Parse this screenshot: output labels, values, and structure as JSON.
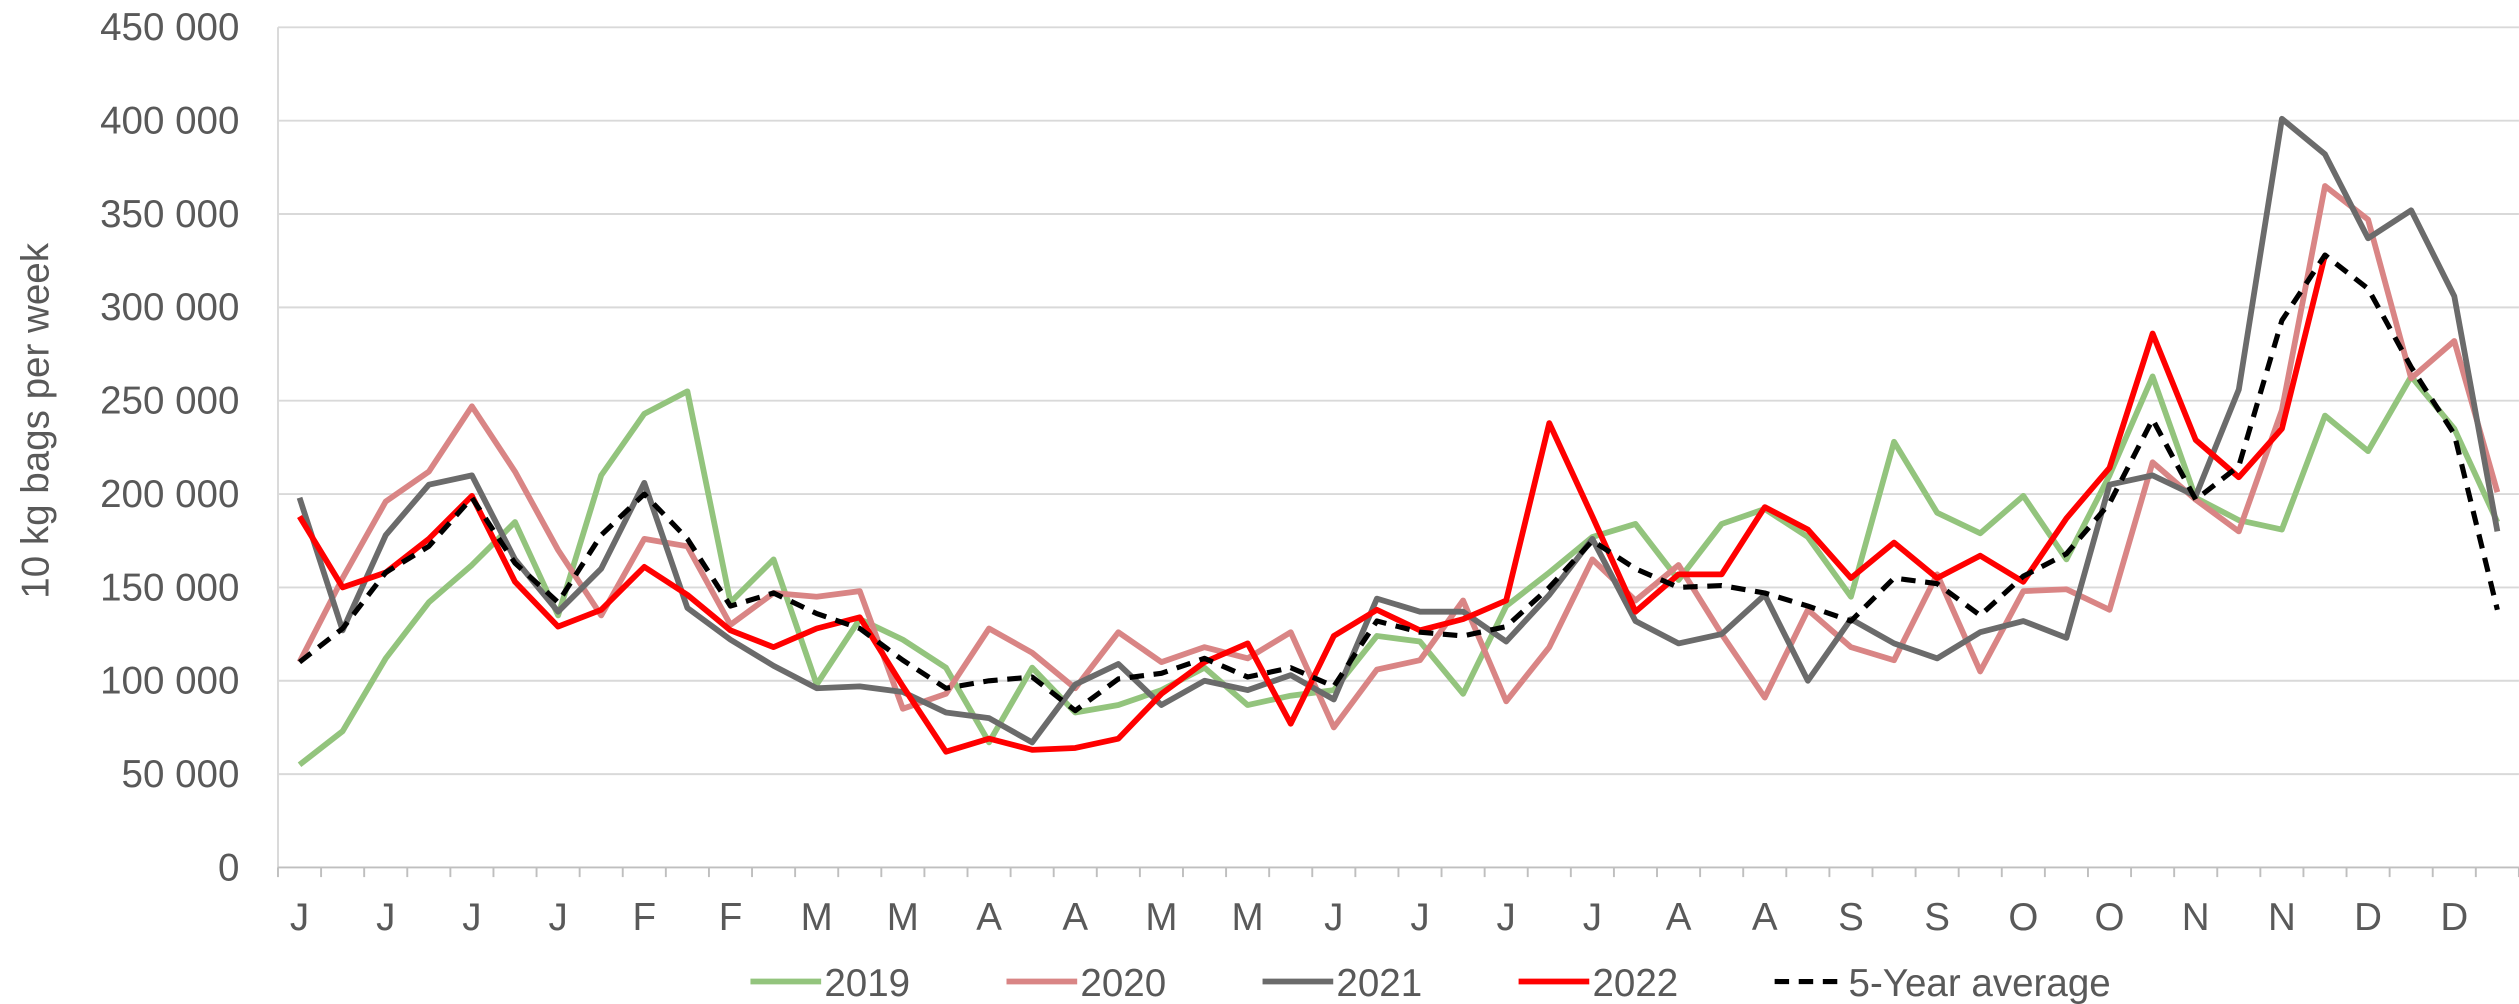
{
  "chart_data": {
    "type": "line",
    "y_label": "10 kg bags per week",
    "categories": [
      "J",
      null,
      "J",
      null,
      "J",
      null,
      "J",
      null,
      "F",
      null,
      "F",
      null,
      "M",
      null,
      "M",
      null,
      "A",
      null,
      "A",
      null,
      "M",
      null,
      "M",
      null,
      "J",
      null,
      "J",
      null,
      "J",
      null,
      "J",
      null,
      "A",
      null,
      "A",
      null,
      "S",
      null,
      "S",
      null,
      "O",
      null,
      "O",
      null,
      "N",
      null,
      "N",
      null,
      "D",
      null,
      "D",
      null
    ],
    "ylim": [
      0,
      450000
    ],
    "yticks": [
      0,
      {
        "value": 50000,
        "label": "50 000"
      },
      {
        "value": 100000,
        "label": "100 000"
      },
      {
        "value": 150000,
        "label": "150 000"
      },
      {
        "value": 200000,
        "label": "200 000"
      },
      {
        "value": 250000,
        "label": "250 000"
      },
      {
        "value": 300000,
        "label": "300 000"
      },
      {
        "value": 350000,
        "label": "350 000"
      },
      {
        "value": 400000,
        "label": "400 000"
      },
      {
        "value": 450000,
        "label": "450 000"
      }
    ],
    "grid": true,
    "legend": "bottom",
    "series": [
      {
        "name": "2019",
        "color": "#93c47d",
        "dashed": false,
        "values": [
          55000,
          73000,
          112000,
          142000,
          162000,
          185000,
          135000,
          210000,
          243000,
          255000,
          142000,
          165000,
          98000,
          133000,
          122000,
          107000,
          67000,
          107000,
          83000,
          87000,
          95000,
          107000,
          87000,
          92000,
          95000,
          124000,
          121000,
          93000,
          140000,
          158000,
          177000,
          184000,
          154000,
          184000,
          192000,
          177000,
          145000,
          228000,
          190000,
          179000,
          199000,
          165000,
          210000,
          263000,
          198000,
          186000,
          181000,
          242000,
          223000,
          263000,
          235000,
          185000
        ]
      },
      {
        "name": "2020",
        "color": "#d98585",
        "dashed": false,
        "values": [
          110000,
          155000,
          196000,
          212000,
          247000,
          212000,
          170000,
          135000,
          176000,
          172000,
          130000,
          147000,
          145000,
          148000,
          85000,
          93000,
          128000,
          115000,
          96000,
          126000,
          110000,
          118000,
          112000,
          126000,
          75000,
          106000,
          111000,
          143000,
          89000,
          118000,
          165000,
          143000,
          162000,
          125000,
          91000,
          138000,
          118000,
          111000,
          157000,
          105000,
          148000,
          149000,
          138000,
          217000,
          197000,
          180000,
          245000,
          365000,
          347000,
          262000,
          282000,
          201000
        ]
      },
      {
        "name": "2021",
        "color": "#6b6b6b",
        "dashed": false,
        "values": [
          198000,
          127000,
          178000,
          205000,
          210000,
          165000,
          137000,
          160000,
          206000,
          139000,
          122000,
          108000,
          96000,
          97000,
          94000,
          83000,
          80000,
          67000,
          98000,
          109000,
          87000,
          100000,
          95000,
          103000,
          90000,
          144000,
          137000,
          137000,
          121000,
          146000,
          176000,
          132000,
          120000,
          125000,
          146000,
          100000,
          133000,
          120000,
          112000,
          126000,
          132000,
          123000,
          205000,
          210000,
          199000,
          256000,
          401000,
          382000,
          337000,
          352000,
          306000,
          180000
        ]
      },
      {
        "name": "2022",
        "color": "#ff0000",
        "dashed": false,
        "values": [
          188000,
          150000,
          158000,
          176000,
          199000,
          153000,
          129000,
          138000,
          161000,
          146000,
          127000,
          118000,
          128000,
          134000,
          97000,
          62000,
          69000,
          63000,
          64000,
          69000,
          93000,
          110000,
          120000,
          77000,
          124000,
          138000,
          127000,
          133000,
          143000,
          238000,
          188000,
          137000,
          157000,
          157000,
          193000,
          181000,
          155000,
          174000,
          155000,
          167000,
          153000,
          187000,
          214000,
          286000,
          229000,
          209000,
          235000,
          328000,
          null,
          null,
          null,
          null
        ]
      },
      {
        "name": "5-Year average",
        "color": "#000000",
        "dashed": true,
        "values": [
          110000,
          128000,
          158000,
          172000,
          198000,
          163000,
          142000,
          178000,
          200000,
          176000,
          140000,
          147000,
          136000,
          128000,
          111000,
          96000,
          100000,
          102000,
          84000,
          101000,
          104000,
          112000,
          102000,
          107000,
          97000,
          132000,
          126000,
          124000,
          129000,
          150000,
          175000,
          160000,
          150000,
          151000,
          147000,
          140000,
          132000,
          155000,
          152000,
          135000,
          156000,
          168000,
          195000,
          240000,
          197000,
          215000,
          293000,
          328000,
          310000,
          268000,
          232000,
          138000
        ]
      }
    ]
  }
}
